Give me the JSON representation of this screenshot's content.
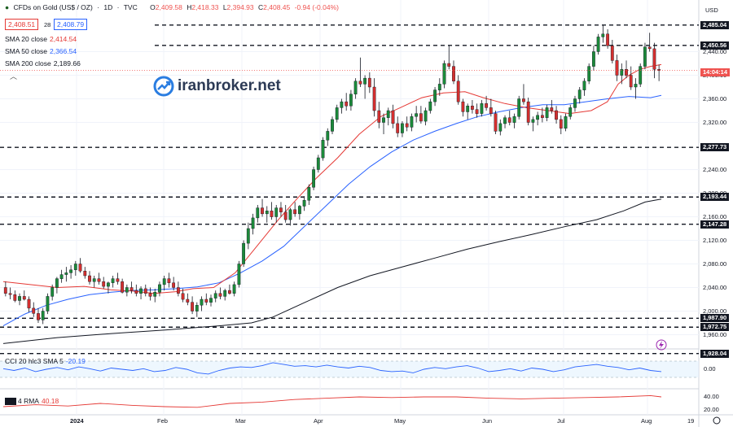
{
  "header": {
    "symbol": "CFDs on Gold (US$ / OZ)",
    "interval": "1D",
    "source": "TVC",
    "ohlc": {
      "o_label": "O",
      "o": "2,409.58",
      "h_label": "H",
      "h": "2,418.33",
      "l_label": "L",
      "l": "2,394.93",
      "c_label": "C",
      "c": "2,408.45"
    },
    "change": "-0.94 (-0.04%)",
    "bid": "2,408.51",
    "spread": "28",
    "ask": "2,408.79"
  },
  "indicators": [
    {
      "label": "SMA 20 close",
      "value": "2,414.54",
      "color": "#e53935"
    },
    {
      "label": "SMA 50 close",
      "value": "2,366.54",
      "color": "#2962ff"
    },
    {
      "label": "SMA 200 close",
      "value": "2,189.66",
      "color": "#131722"
    }
  ],
  "collapse_icon": "chevron-up-icon",
  "watermark": {
    "text": "iranbroker.net",
    "icon": "growth-logo-icon"
  },
  "currency": "USD",
  "x_axis_labels": [
    "2024",
    "Feb",
    "Mar",
    "Apr",
    "May",
    "Jun",
    "Jul",
    "Aug",
    "19"
  ],
  "y_axis_labels": [
    "2,440.00",
    "2,400.00",
    "2,360.00",
    "2,320.00",
    "2,240.00",
    "2,200.00",
    "2,160.00",
    "2,120.00",
    "2,080.00",
    "2,040.00",
    "2,000.00",
    "1,960.00"
  ],
  "price_levels": [
    "2,485.04",
    "2,450.56",
    "2,277.73",
    "2,193.44",
    "2,147.28",
    "1,987.90",
    "1,972.75",
    "1,928.04"
  ],
  "countdown": "14:04:14",
  "cci": {
    "label": "CCI 20 hlc3 SMA 5",
    "value": "-20.19",
    "axis": [
      "0.00"
    ]
  },
  "rsi": {
    "label": "4 RMA",
    "value": "40.18",
    "axis": [
      "40.00",
      "20.00"
    ]
  },
  "icons": {
    "alert": "flash-icon",
    "settings": "settings-icon",
    "tv_logo": "tradingview-logo"
  },
  "chart_data": {
    "type": "candlestick",
    "title": "CFDs on Gold (US$ / OZ) · 1D · TVC",
    "y_unit": "USD",
    "ylim": [
      1940,
      2500
    ],
    "x_start": "2023-12-18",
    "x_end": "2024-08-16",
    "grid": true,
    "horizontal_levels": [
      2485.04,
      2450.56,
      2277.73,
      2193.44,
      2147.28,
      1987.9,
      1972.75,
      1928.04
    ],
    "last_close": 2408.45,
    "candles": [
      [
        2040,
        2050,
        2025,
        2030
      ],
      [
        2030,
        2040,
        2020,
        2028
      ],
      [
        2028,
        2035,
        2015,
        2018
      ],
      [
        2018,
        2030,
        2010,
        2025
      ],
      [
        2025,
        2035,
        2018,
        2020
      ],
      [
        2020,
        2025,
        1998,
        2005
      ],
      [
        2005,
        2015,
        1990,
        1996
      ],
      [
        1996,
        2005,
        1980,
        1985
      ],
      [
        1985,
        2005,
        1978,
        2000
      ],
      [
        2000,
        2030,
        1995,
        2025
      ],
      [
        2025,
        2045,
        2018,
        2040
      ],
      [
        2040,
        2058,
        2030,
        2055
      ],
      [
        2055,
        2070,
        2048,
        2062
      ],
      [
        2062,
        2075,
        2050,
        2065
      ],
      [
        2065,
        2078,
        2055,
        2070
      ],
      [
        2070,
        2085,
        2060,
        2080
      ],
      [
        2080,
        2090,
        2065,
        2068
      ],
      [
        2068,
        2075,
        2055,
        2060
      ],
      [
        2060,
        2068,
        2045,
        2050
      ],
      [
        2050,
        2060,
        2040,
        2055
      ],
      [
        2055,
        2065,
        2045,
        2050
      ],
      [
        2050,
        2058,
        2038,
        2042
      ],
      [
        2042,
        2050,
        2030,
        2048
      ],
      [
        2048,
        2060,
        2040,
        2055
      ],
      [
        2055,
        2065,
        2045,
        2050
      ],
      [
        2050,
        2055,
        2030,
        2032
      ],
      [
        2032,
        2045,
        2025,
        2040
      ],
      [
        2040,
        2050,
        2030,
        2035
      ],
      [
        2035,
        2045,
        2025,
        2030
      ],
      [
        2030,
        2042,
        2020,
        2038
      ],
      [
        2038,
        2045,
        2025,
        2030
      ],
      [
        2030,
        2040,
        2018,
        2025
      ],
      [
        2025,
        2038,
        2015,
        2032
      ],
      [
        2032,
        2050,
        2025,
        2045
      ],
      [
        2045,
        2060,
        2035,
        2055
      ],
      [
        2055,
        2065,
        2040,
        2048
      ],
      [
        2048,
        2058,
        2035,
        2040
      ],
      [
        2040,
        2050,
        2025,
        2030
      ],
      [
        2030,
        2038,
        2015,
        2020
      ],
      [
        2020,
        2030,
        2010,
        2015
      ],
      [
        2015,
        2025,
        1995,
        2000
      ],
      [
        2000,
        2015,
        1990,
        2010
      ],
      [
        2010,
        2025,
        2000,
        2020
      ],
      [
        2020,
        2030,
        2010,
        2015
      ],
      [
        2015,
        2028,
        2008,
        2022
      ],
      [
        2022,
        2035,
        2015,
        2030
      ],
      [
        2030,
        2040,
        2020,
        2025
      ],
      [
        2025,
        2038,
        2018,
        2035
      ],
      [
        2035,
        2045,
        2028,
        2030
      ],
      [
        2030,
        2050,
        2025,
        2045
      ],
      [
        2045,
        2085,
        2040,
        2080
      ],
      [
        2080,
        2120,
        2075,
        2115
      ],
      [
        2115,
        2150,
        2105,
        2140
      ],
      [
        2140,
        2165,
        2130,
        2158
      ],
      [
        2158,
        2180,
        2150,
        2175
      ],
      [
        2175,
        2190,
        2160,
        2165
      ],
      [
        2165,
        2178,
        2150,
        2170
      ],
      [
        2170,
        2185,
        2155,
        2160
      ],
      [
        2160,
        2180,
        2150,
        2175
      ],
      [
        2175,
        2185,
        2160,
        2168
      ],
      [
        2168,
        2180,
        2150,
        2155
      ],
      [
        2155,
        2175,
        2145,
        2172
      ],
      [
        2172,
        2185,
        2160,
        2165
      ],
      [
        2165,
        2180,
        2155,
        2178
      ],
      [
        2178,
        2195,
        2170,
        2188
      ],
      [
        2188,
        2215,
        2180,
        2210
      ],
      [
        2210,
        2245,
        2205,
        2240
      ],
      [
        2240,
        2265,
        2235,
        2260
      ],
      [
        2260,
        2295,
        2255,
        2290
      ],
      [
        2290,
        2310,
        2280,
        2305
      ],
      [
        2305,
        2330,
        2300,
        2325
      ],
      [
        2325,
        2350,
        2320,
        2345
      ],
      [
        2345,
        2360,
        2335,
        2355
      ],
      [
        2355,
        2370,
        2340,
        2348
      ],
      [
        2348,
        2375,
        2340,
        2368
      ],
      [
        2368,
        2395,
        2360,
        2390
      ],
      [
        2390,
        2430,
        2380,
        2385
      ],
      [
        2385,
        2400,
        2360,
        2395
      ],
      [
        2395,
        2405,
        2370,
        2380
      ],
      [
        2380,
        2395,
        2330,
        2340
      ],
      [
        2340,
        2355,
        2310,
        2320
      ],
      [
        2320,
        2335,
        2300,
        2328
      ],
      [
        2328,
        2345,
        2315,
        2340
      ],
      [
        2340,
        2350,
        2310,
        2318
      ],
      [
        2318,
        2330,
        2295,
        2302
      ],
      [
        2302,
        2322,
        2295,
        2318
      ],
      [
        2318,
        2330,
        2305,
        2312
      ],
      [
        2312,
        2335,
        2305,
        2330
      ],
      [
        2330,
        2348,
        2320,
        2335
      ],
      [
        2335,
        2348,
        2318,
        2322
      ],
      [
        2322,
        2345,
        2315,
        2340
      ],
      [
        2340,
        2360,
        2335,
        2355
      ],
      [
        2355,
        2380,
        2348,
        2375
      ],
      [
        2375,
        2395,
        2365,
        2385
      ],
      [
        2385,
        2425,
        2378,
        2420
      ],
      [
        2420,
        2450,
        2410,
        2415
      ],
      [
        2415,
        2425,
        2385,
        2390
      ],
      [
        2390,
        2400,
        2350,
        2355
      ],
      [
        2355,
        2360,
        2330,
        2338
      ],
      [
        2338,
        2352,
        2325,
        2348
      ],
      [
        2348,
        2358,
        2335,
        2342
      ],
      [
        2342,
        2352,
        2328,
        2335
      ],
      [
        2335,
        2358,
        2330,
        2352
      ],
      [
        2352,
        2365,
        2340,
        2345
      ],
      [
        2345,
        2360,
        2330,
        2335
      ],
      [
        2335,
        2340,
        2300,
        2305
      ],
      [
        2305,
        2325,
        2298,
        2318
      ],
      [
        2318,
        2332,
        2310,
        2328
      ],
      [
        2328,
        2340,
        2315,
        2320
      ],
      [
        2320,
        2335,
        2310,
        2330
      ],
      [
        2330,
        2365,
        2325,
        2360
      ],
      [
        2360,
        2385,
        2350,
        2355
      ],
      [
        2355,
        2362,
        2315,
        2320
      ],
      [
        2320,
        2330,
        2305,
        2325
      ],
      [
        2325,
        2338,
        2315,
        2332
      ],
      [
        2332,
        2345,
        2320,
        2328
      ],
      [
        2328,
        2350,
        2322,
        2345
      ],
      [
        2345,
        2358,
        2335,
        2340
      ],
      [
        2340,
        2348,
        2318,
        2325
      ],
      [
        2325,
        2332,
        2300,
        2310
      ],
      [
        2310,
        2335,
        2305,
        2330
      ],
      [
        2330,
        2350,
        2325,
        2345
      ],
      [
        2345,
        2365,
        2338,
        2360
      ],
      [
        2360,
        2380,
        2352,
        2375
      ],
      [
        2375,
        2395,
        2365,
        2390
      ],
      [
        2390,
        2420,
        2385,
        2415
      ],
      [
        2415,
        2450,
        2408,
        2440
      ],
      [
        2440,
        2470,
        2435,
        2465
      ],
      [
        2465,
        2485,
        2455,
        2470
      ],
      [
        2470,
        2478,
        2445,
        2450
      ],
      [
        2450,
        2460,
        2420,
        2425
      ],
      [
        2425,
        2435,
        2390,
        2400
      ],
      [
        2400,
        2420,
        2385,
        2410
      ],
      [
        2410,
        2425,
        2395,
        2400
      ],
      [
        2400,
        2415,
        2375,
        2380
      ],
      [
        2380,
        2395,
        2360,
        2385
      ],
      [
        2385,
        2420,
        2380,
        2415
      ],
      [
        2415,
        2455,
        2410,
        2448
      ],
      [
        2448,
        2472,
        2440,
        2445
      ],
      [
        2445,
        2455,
        2395,
        2410
      ],
      [
        2410,
        2418,
        2390,
        2408
      ]
    ],
    "sma20": [
      [
        0,
        2050
      ],
      [
        25,
        2045
      ],
      [
        50,
        2040
      ],
      [
        75,
        2042
      ],
      [
        100,
        2036
      ],
      [
        120,
        2034
      ],
      [
        140,
        2030
      ],
      [
        160,
        2033
      ],
      [
        176,
        2038
      ],
      [
        195,
        2040
      ],
      [
        215,
        2065
      ],
      [
        235,
        2110
      ],
      [
        255,
        2155
      ],
      [
        272,
        2190
      ],
      [
        290,
        2225
      ],
      [
        310,
        2260
      ],
      [
        330,
        2300
      ],
      [
        350,
        2330
      ],
      [
        368,
        2345
      ],
      [
        388,
        2362
      ],
      [
        408,
        2370
      ],
      [
        428,
        2372
      ],
      [
        445,
        2362
      ],
      [
        465,
        2352
      ],
      [
        485,
        2345
      ],
      [
        505,
        2340
      ],
      [
        525,
        2335
      ],
      [
        545,
        2340
      ],
      [
        560,
        2355
      ],
      [
        570,
        2385
      ],
      [
        580,
        2400
      ],
      [
        590,
        2410
      ],
      [
        600,
        2415
      ],
      [
        610,
        2418
      ]
    ],
    "sma50": [
      [
        0,
        1975
      ],
      [
        20,
        1995
      ],
      [
        40,
        2010
      ],
      [
        60,
        2020
      ],
      [
        80,
        2028
      ],
      [
        100,
        2032
      ],
      [
        120,
        2035
      ],
      [
        140,
        2036
      ],
      [
        160,
        2038
      ],
      [
        180,
        2041
      ],
      [
        200,
        2048
      ],
      [
        220,
        2065
      ],
      [
        240,
        2085
      ],
      [
        260,
        2110
      ],
      [
        280,
        2145
      ],
      [
        300,
        2180
      ],
      [
        320,
        2215
      ],
      [
        340,
        2245
      ],
      [
        360,
        2270
      ],
      [
        380,
        2290
      ],
      [
        400,
        2305
      ],
      [
        420,
        2318
      ],
      [
        440,
        2330
      ],
      [
        460,
        2338
      ],
      [
        480,
        2345
      ],
      [
        500,
        2350
      ],
      [
        520,
        2350
      ],
      [
        540,
        2355
      ],
      [
        560,
        2360
      ],
      [
        580,
        2364
      ],
      [
        600,
        2362
      ],
      [
        610,
        2366
      ]
    ],
    "sma200": [
      [
        0,
        1945
      ],
      [
        50,
        1955
      ],
      [
        100,
        1962
      ],
      [
        150,
        1968
      ],
      [
        200,
        1975
      ],
      [
        230,
        1980
      ],
      [
        250,
        1990
      ],
      [
        280,
        2015
      ],
      [
        310,
        2040
      ],
      [
        340,
        2060
      ],
      [
        370,
        2075
      ],
      [
        400,
        2090
      ],
      [
        430,
        2105
      ],
      [
        460,
        2118
      ],
      [
        490,
        2130
      ],
      [
        520,
        2143
      ],
      [
        550,
        2155
      ],
      [
        575,
        2170
      ],
      [
        595,
        2185
      ],
      [
        610,
        2190
      ]
    ],
    "cci": [
      [
        0,
        5
      ],
      [
        10,
        -10
      ],
      [
        20,
        10
      ],
      [
        30,
        -20
      ],
      [
        40,
        0
      ],
      [
        50,
        15
      ],
      [
        60,
        -5
      ],
      [
        70,
        20
      ],
      [
        80,
        5
      ],
      [
        90,
        -15
      ],
      [
        100,
        10
      ],
      [
        110,
        0
      ],
      [
        120,
        -10
      ],
      [
        130,
        5
      ],
      [
        140,
        -20
      ],
      [
        150,
        -10
      ],
      [
        160,
        15
      ],
      [
        170,
        0
      ],
      [
        180,
        -30
      ],
      [
        190,
        -40
      ],
      [
        200,
        -10
      ],
      [
        210,
        10
      ],
      [
        220,
        20
      ],
      [
        230,
        15
      ],
      [
        240,
        30
      ],
      [
        250,
        55
      ],
      [
        260,
        40
      ],
      [
        270,
        25
      ],
      [
        280,
        30
      ],
      [
        290,
        20
      ],
      [
        300,
        35
      ],
      [
        310,
        20
      ],
      [
        320,
        10
      ],
      [
        330,
        25
      ],
      [
        340,
        15
      ],
      [
        350,
        -10
      ],
      [
        360,
        -20
      ],
      [
        370,
        -15
      ],
      [
        380,
        -30
      ],
      [
        390,
        0
      ],
      [
        400,
        15
      ],
      [
        410,
        5
      ],
      [
        420,
        20
      ],
      [
        430,
        30
      ],
      [
        440,
        10
      ],
      [
        450,
        -20
      ],
      [
        460,
        -10
      ],
      [
        470,
        5
      ],
      [
        480,
        -15
      ],
      [
        490,
        10
      ],
      [
        500,
        0
      ],
      [
        510,
        -20
      ],
      [
        520,
        -5
      ],
      [
        530,
        20
      ],
      [
        540,
        30
      ],
      [
        550,
        40
      ],
      [
        560,
        25
      ],
      [
        570,
        15
      ],
      [
        580,
        -5
      ],
      [
        590,
        10
      ],
      [
        600,
        -10
      ],
      [
        610,
        -20
      ]
    ],
    "rma": [
      [
        0,
        25
      ],
      [
        30,
        28
      ],
      [
        60,
        26
      ],
      [
        90,
        30
      ],
      [
        120,
        27
      ],
      [
        150,
        25
      ],
      [
        180,
        24
      ],
      [
        210,
        30
      ],
      [
        240,
        32
      ],
      [
        270,
        36
      ],
      [
        300,
        38
      ],
      [
        330,
        40
      ],
      [
        360,
        39
      ],
      [
        390,
        40
      ],
      [
        420,
        40
      ],
      [
        450,
        38
      ],
      [
        480,
        37
      ],
      [
        510,
        38
      ],
      [
        540,
        39
      ],
      [
        570,
        40
      ],
      [
        600,
        42
      ],
      [
        610,
        40
      ]
    ],
    "cci_range": [
      -150,
      150
    ],
    "rma_range": [
      15,
      50
    ]
  }
}
